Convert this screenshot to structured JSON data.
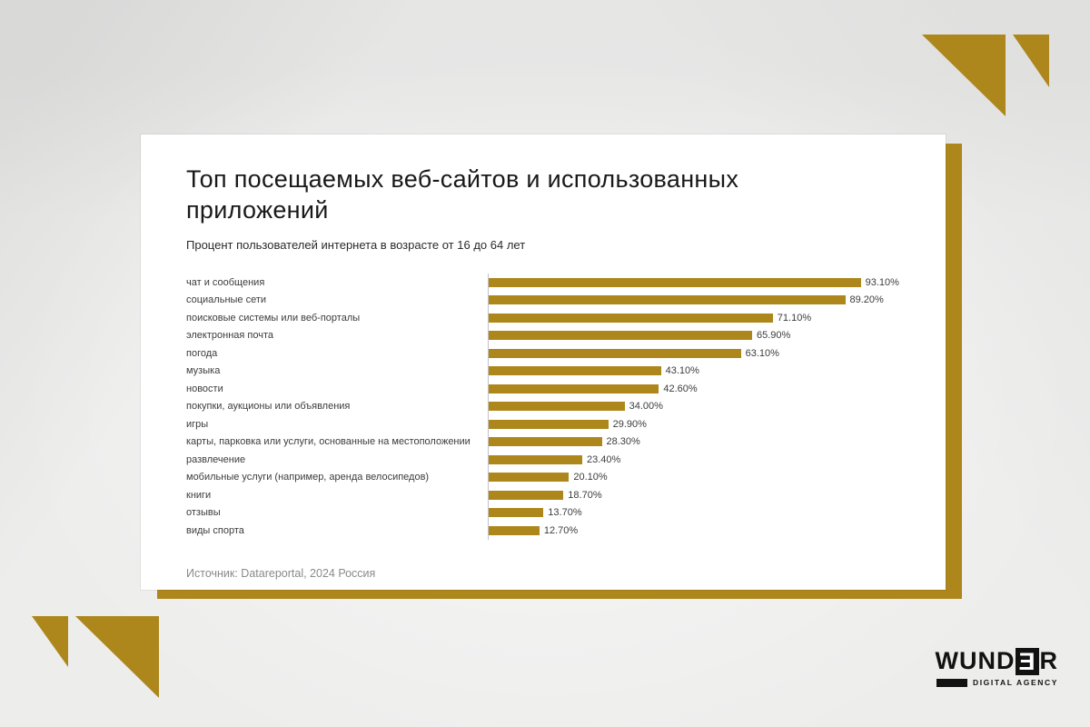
{
  "page": {
    "background_color": "#ededec",
    "accent_color": "#ad861c"
  },
  "slide": {
    "title": "Топ посещаемых веб-сайтов и использованных приложений",
    "subtitle": "Процент пользователей интернета в возрасте от 16 до 64 лет",
    "source": "Источник: Datareportal, 2024 Россия"
  },
  "logo": {
    "part1": "WUND",
    "boxed": "Ǝ",
    "part2": "R",
    "tagline": "DIGITAL AGENCY"
  },
  "chart_data": {
    "type": "bar",
    "orientation": "horizontal",
    "title": "Топ посещаемых веб-сайтов и использованных приложений",
    "subtitle": "Процент пользователей интернета в возрасте от 16 до 64 лет",
    "categories": [
      "чат и сообщения",
      "социальные сети",
      "поисковые системы или веб-порталы",
      "электронная почта",
      "погода",
      "музыка",
      "новости",
      "покупки, аукционы или объявления",
      "игры",
      "карты, парковка или услуги, основанные на местоположении",
      "развлечение",
      "мобильные услуги (например, аренда велосипедов)",
      "книги",
      "отзывы",
      "виды спорта"
    ],
    "values": [
      93.1,
      89.2,
      71.1,
      65.9,
      63.1,
      43.1,
      42.6,
      34.0,
      29.9,
      28.3,
      23.4,
      20.1,
      18.7,
      13.7,
      12.7
    ],
    "value_labels": [
      "93.10%",
      "89.20%",
      "71.10%",
      "65.90%",
      "63.10%",
      "43.10%",
      "42.60%",
      "34.00%",
      "29.90%",
      "28.30%",
      "23.40%",
      "20.10%",
      "18.70%",
      "13.70%",
      "12.70%"
    ],
    "xlim": [
      0,
      100
    ],
    "bar_color": "#ad861c",
    "grid": false,
    "legend": false,
    "source": "Источник: Datareportal, 2024 Россия"
  }
}
